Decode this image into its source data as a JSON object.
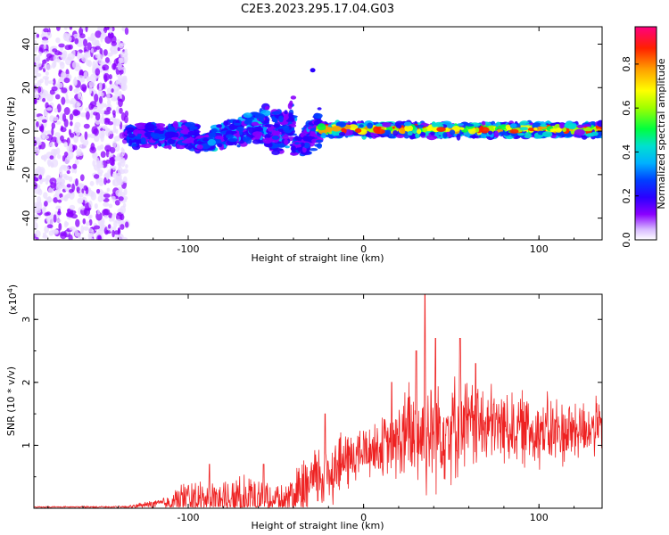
{
  "figure": {
    "title": "C2E3.2023.295.17.04.G03"
  },
  "chart_data": [
    {
      "type": "heatmap",
      "xlabel": "Height of straight line (km)",
      "ylabel": "Frequency (Hz)",
      "xlim": [
        -188,
        136
      ],
      "ylim": [
        -50,
        48
      ],
      "xticks": [
        -100,
        0,
        100
      ],
      "yticks": [
        40,
        20,
        0,
        -20,
        -40
      ],
      "colorbar": {
        "label": "Normalized spectral amplitude",
        "range": [
          0,
          0.97
        ],
        "ticks": [
          "0.0",
          "0.2",
          "0.4",
          "0.6",
          "0.8"
        ],
        "colors": [
          "#e6e6ff",
          "#8a00ff",
          "#3a00ff",
          "#0000ff",
          "#0090ff",
          "#00e0e0",
          "#00ff40",
          "#a0ff00",
          "#ffff00",
          "#ffa000",
          "#ff2000",
          "#ff0080"
        ]
      },
      "bands": [
        {
          "x": [
            -188,
            -135
          ],
          "y": [
            -50,
            48
          ],
          "level": 0.1,
          "description": "scattered noise"
        },
        {
          "x": [
            -135,
            -95
          ],
          "y": [
            -8,
            4
          ],
          "level": 0.3
        },
        {
          "x": [
            -95,
            -55
          ],
          "y": [
            -8,
            15
          ],
          "level": 0.35
        },
        {
          "x": [
            -55,
            -40
          ],
          "y": [
            -12,
            18
          ],
          "level": 0.3
        },
        {
          "x": [
            -40,
            -25
          ],
          "y": [
            -12,
            12
          ],
          "level": 0.3
        },
        {
          "x": [
            -25,
            136
          ],
          "y": [
            -3,
            4
          ],
          "level": 0.9
        }
      ],
      "points": [
        {
          "x": -29,
          "y": 28,
          "level": 0.25
        }
      ]
    },
    {
      "type": "line",
      "xlabel": "Height of straight line (km)",
      "ylabel": "SNR (10 * v/v)",
      "scale_label": "(x10",
      "scale_exp": "4",
      "xlim": [
        -188,
        136
      ],
      "ylim": [
        0,
        3.4
      ],
      "xticks": [
        -100,
        0,
        100
      ],
      "yticks": [
        1,
        2,
        3
      ],
      "color": "#ee2222",
      "envelope": [
        {
          "x": -188,
          "base": 0.02,
          "amp": 0.01
        },
        {
          "x": -135,
          "base": 0.02,
          "amp": 0.02
        },
        {
          "x": -115,
          "base": 0.08,
          "amp": 0.1
        },
        {
          "x": -100,
          "base": 0.15,
          "amp": 0.35
        },
        {
          "x": -80,
          "base": 0.12,
          "amp": 0.35
        },
        {
          "x": -60,
          "base": 0.2,
          "amp": 0.45
        },
        {
          "x": -45,
          "base": 0.1,
          "amp": 0.3
        },
        {
          "x": -30,
          "base": 0.4,
          "amp": 0.6
        },
        {
          "x": -20,
          "base": 0.6,
          "amp": 0.7
        },
        {
          "x": 0,
          "base": 0.9,
          "amp": 0.5
        },
        {
          "x": 15,
          "base": 1.0,
          "amp": 0.6
        },
        {
          "x": 30,
          "base": 1.2,
          "amp": 1.2
        },
        {
          "x": 50,
          "base": 1.3,
          "amp": 1.0
        },
        {
          "x": 80,
          "base": 1.3,
          "amp": 0.7
        },
        {
          "x": 110,
          "base": 1.2,
          "amp": 0.7
        },
        {
          "x": 136,
          "base": 1.3,
          "amp": 0.5
        }
      ],
      "peaks": [
        {
          "x": 35,
          "y": 3.4
        },
        {
          "x": 41,
          "y": 2.7
        },
        {
          "x": 55,
          "y": 2.7
        },
        {
          "x": 30,
          "y": 2.5
        },
        {
          "x": 64,
          "y": 2.3
        },
        {
          "x": -22,
          "y": 1.5
        },
        {
          "x": -57,
          "y": 0.7
        },
        {
          "x": -88,
          "y": 0.7
        },
        {
          "x": 16,
          "y": 2.0
        }
      ]
    }
  ]
}
